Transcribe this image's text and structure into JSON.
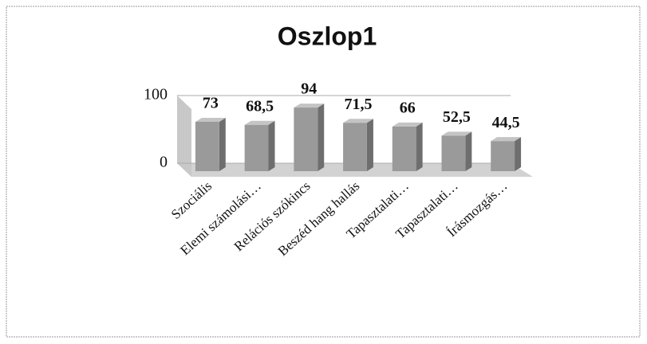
{
  "chart_data": {
    "type": "bar",
    "title": "Oszlop1",
    "categories": [
      "Szociális",
      "Elemi számolási…",
      "Relációs szókincs",
      "Beszéd hang hallás",
      "Tapasztalati…",
      "Tapasztalati…",
      "Írásmozgás…"
    ],
    "values": [
      73,
      68.5,
      94,
      71.5,
      66,
      52.5,
      44.5
    ],
    "value_labels": [
      "73",
      "68,5",
      "94",
      "71,5",
      "66",
      "52,5",
      "44,5"
    ],
    "color": "#9a9a9a",
    "ylim": [
      0,
      100
    ],
    "yticks": [
      0,
      100
    ],
    "grid": true
  }
}
